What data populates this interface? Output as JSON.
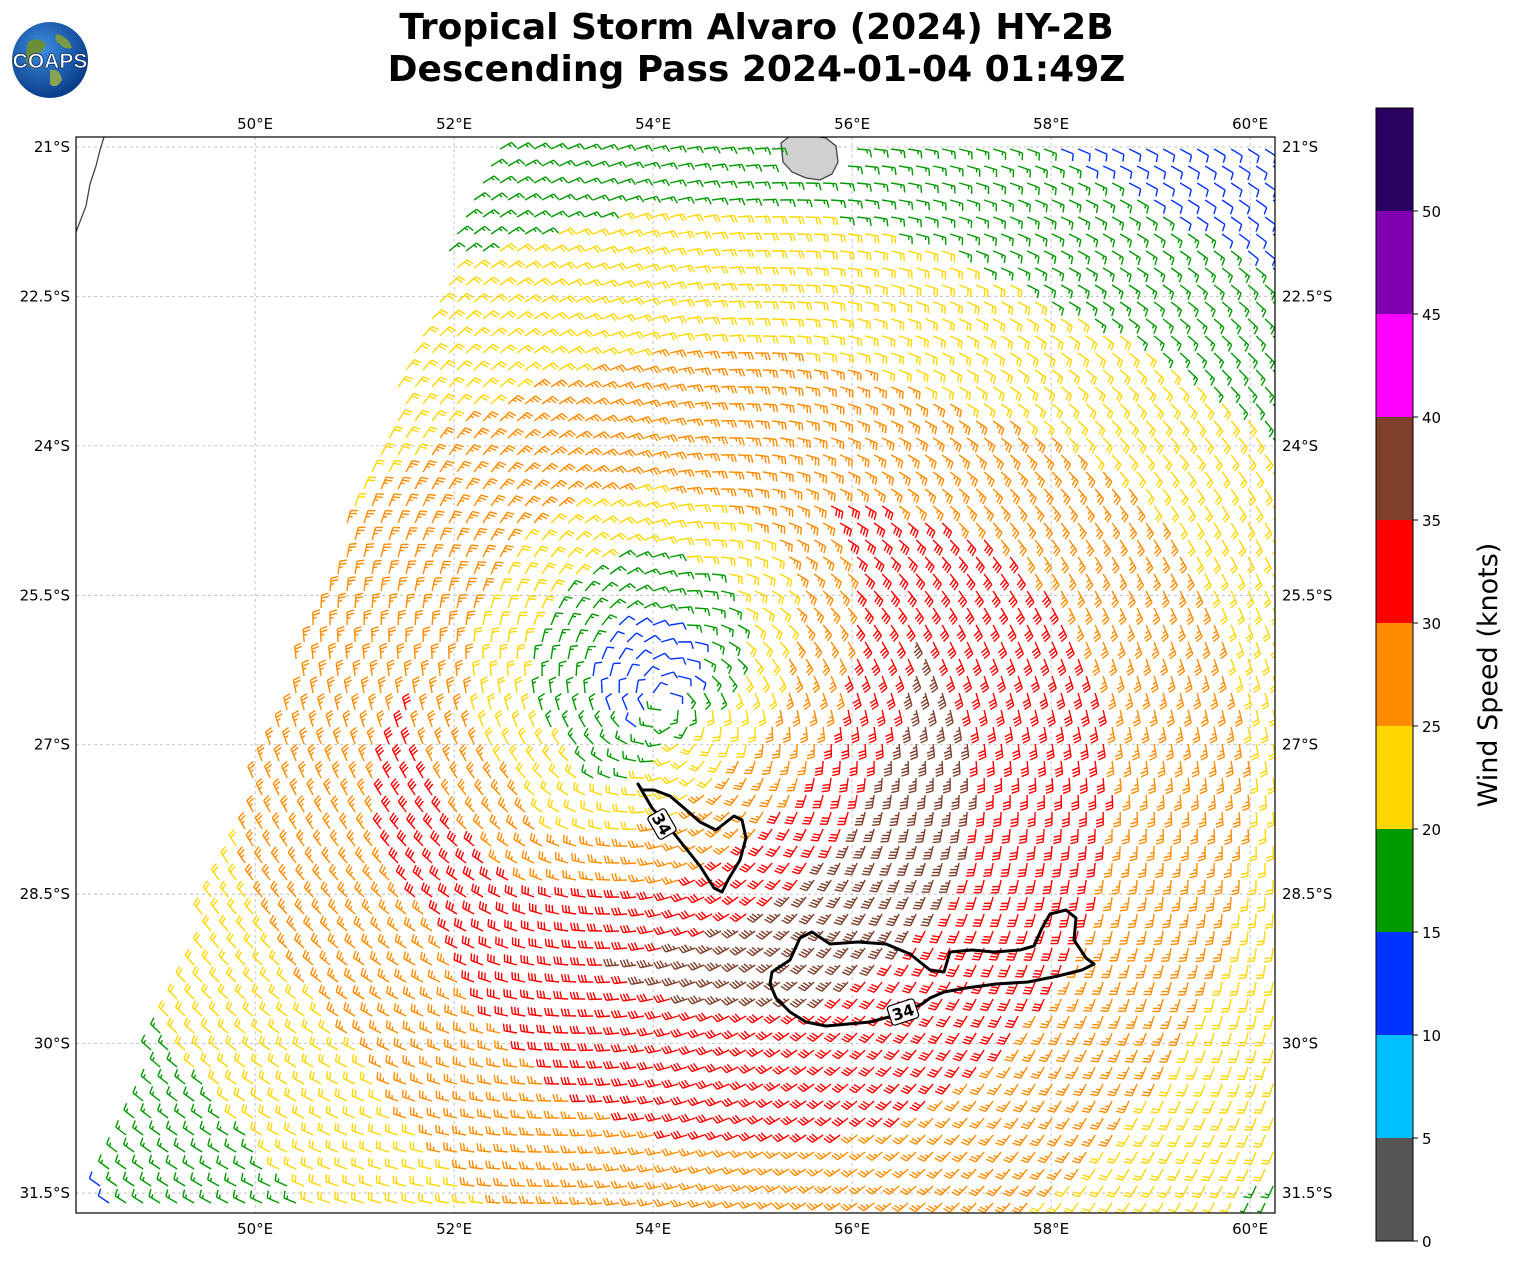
{
  "title": {
    "line1": "Tropical Storm Alvaro (2024) HY-2B",
    "line2": "Descending Pass 2024-01-04 01:49Z"
  },
  "logo": {
    "text": "COAPS",
    "icon": "globe-logo-icon"
  },
  "map": {
    "lon_range": [
      48.2,
      60.25
    ],
    "lat_range": [
      -31.7,
      -20.9
    ],
    "lon_ticks": [
      {
        "value": 50,
        "label": "50°E"
      },
      {
        "value": 52,
        "label": "52°E"
      },
      {
        "value": 54,
        "label": "54°E"
      },
      {
        "value": 56,
        "label": "56°E"
      },
      {
        "value": 58,
        "label": "58°E"
      },
      {
        "value": 60,
        "label": "60°E"
      }
    ],
    "lat_ticks": [
      {
        "value": -21,
        "label": "21°S"
      },
      {
        "value": -22.5,
        "label": "22.5°S"
      },
      {
        "value": -24,
        "label": "24°S"
      },
      {
        "value": -25.5,
        "label": "25.5°S"
      },
      {
        "value": -27,
        "label": "27°S"
      },
      {
        "value": -28.5,
        "label": "28.5°S"
      },
      {
        "value": -30,
        "label": "30°S"
      },
      {
        "value": -31.5,
        "label": "31.5°S"
      }
    ],
    "storm_center": {
      "lon": 54.1,
      "lat": -26.6
    },
    "contour_label": "34",
    "gridlines": true
  },
  "colorbar": {
    "label": "Wind Speed (knots)",
    "ticks": [
      "0",
      "5",
      "10",
      "15",
      "20",
      "25",
      "30",
      "35",
      "40",
      "45",
      "50"
    ],
    "bins": [
      {
        "from": 0,
        "to": 5,
        "color": "#555555"
      },
      {
        "from": 5,
        "to": 10,
        "color": "#00bfff"
      },
      {
        "from": 10,
        "to": 15,
        "color": "#0033ff"
      },
      {
        "from": 15,
        "to": 20,
        "color": "#009900"
      },
      {
        "from": 20,
        "to": 25,
        "color": "#ffd700"
      },
      {
        "from": 25,
        "to": 30,
        "color": "#ff8c00"
      },
      {
        "from": 30,
        "to": 35,
        "color": "#ff0000"
      },
      {
        "from": 35,
        "to": 40,
        "color": "#7f3f2a"
      },
      {
        "from": 40,
        "to": 45,
        "color": "#ff00ff"
      },
      {
        "from": 45,
        "to": 50,
        "color": "#8000b0"
      },
      {
        "from": 50,
        "to": 55,
        "color": "#2a0060"
      }
    ]
  }
}
